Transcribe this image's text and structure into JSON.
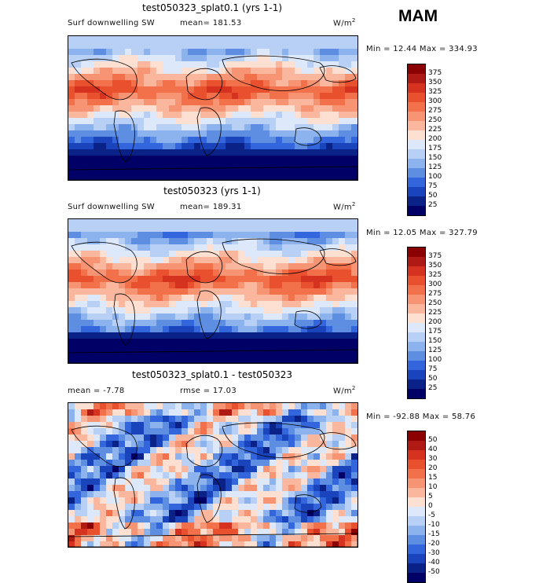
{
  "season": "MAM",
  "panels": [
    {
      "title": "test050323_splat0.1 (yrs 1-1)",
      "left_label": "Surf downwelling SW",
      "center_label": "mean= 181.53",
      "units_base": "W/m",
      "units_sup": "2",
      "minmax": "Min =  12.44 Max = 334.93",
      "levels": [
        "375",
        "350",
        "325",
        "300",
        "275",
        "250",
        "225",
        "200",
        "175",
        "150",
        "125",
        "100",
        "75",
        "50",
        "25"
      ],
      "colors": [
        "#8b0000",
        "#b01a14",
        "#d5321f",
        "#e8502e",
        "#f2714a",
        "#f79474",
        "#fbb79e",
        "#fde0d2",
        "#dde9fb",
        "#b8d0f6",
        "#8db3ee",
        "#5e8ee2",
        "#3366dd",
        "#1a44bb",
        "#0a2288",
        "#000066"
      ]
    },
    {
      "title": "test050323 (yrs 1-1)",
      "left_label": "Surf downwelling SW",
      "center_label": "mean= 189.31",
      "units_base": "W/m",
      "units_sup": "2",
      "minmax": "Min =  12.05 Max = 327.79",
      "levels": [
        "375",
        "350",
        "325",
        "300",
        "275",
        "250",
        "225",
        "200",
        "175",
        "150",
        "125",
        "100",
        "75",
        "50",
        "25"
      ],
      "colors": [
        "#8b0000",
        "#b01a14",
        "#d5321f",
        "#e8502e",
        "#f2714a",
        "#f79474",
        "#fbb79e",
        "#fde0d2",
        "#dde9fb",
        "#b8d0f6",
        "#8db3ee",
        "#5e8ee2",
        "#3366dd",
        "#1a44bb",
        "#0a2288",
        "#000066"
      ]
    },
    {
      "title": "test050323_splat0.1 - test050323",
      "left_label": "mean =   -7.78",
      "center_label": "rmse =   17.03",
      "units_base": "W/m",
      "units_sup": "2",
      "minmax": "Min = -92.88 Max =   58.76",
      "levels": [
        "50",
        "40",
        "30",
        "20",
        "15",
        "10",
        "5",
        "0",
        "-5",
        "-10",
        "-15",
        "-20",
        "-30",
        "-40",
        "-50"
      ],
      "colors": [
        "#8b0000",
        "#b01a14",
        "#d5321f",
        "#e8502e",
        "#f2714a",
        "#f79474",
        "#fbb79e",
        "#fde0d2",
        "#dde9fb",
        "#b8d0f6",
        "#8db3ee",
        "#5e8ee2",
        "#3366dd",
        "#1a44bb",
        "#0a2288",
        "#000066"
      ]
    }
  ]
}
